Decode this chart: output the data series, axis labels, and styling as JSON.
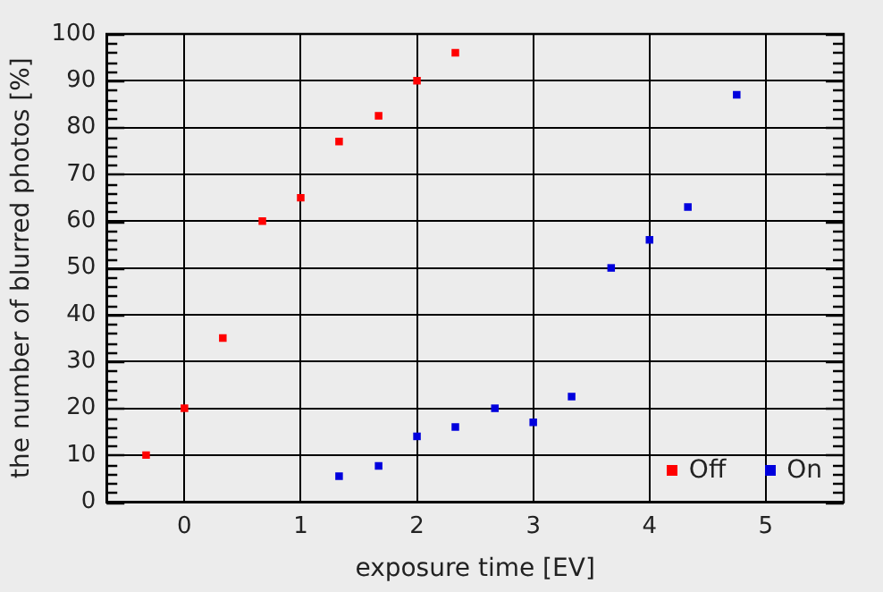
{
  "chart_data": {
    "type": "scatter",
    "xlabel": "exposure time [EV]",
    "ylabel": "the number of blurred photos [%]",
    "xlim": [
      -0.67,
      5.67
    ],
    "xticks": [
      0,
      1,
      2,
      3,
      4,
      5
    ],
    "ylim": [
      0,
      100
    ],
    "yticks": [
      0,
      {
        "value": 2,
        "label": null
      },
      {
        "value": 4,
        "label": null
      },
      {
        "value": 6,
        "label": null
      },
      {
        "value": 8,
        "label": null
      },
      10,
      {
        "value": 12,
        "label": null
      },
      {
        "value": 14,
        "label": null
      },
      {
        "value": 16,
        "label": null
      },
      {
        "value": 18,
        "label": null
      },
      20,
      {
        "value": 22,
        "label": null
      },
      {
        "value": 24,
        "label": null
      },
      {
        "value": 26,
        "label": null
      },
      {
        "value": 28,
        "label": null
      },
      30,
      {
        "value": 32,
        "label": null
      },
      {
        "value": 34,
        "label": null
      },
      {
        "value": 36,
        "label": null
      },
      {
        "value": 38,
        "label": null
      },
      40,
      {
        "value": 42,
        "label": null
      },
      {
        "value": 44,
        "label": null
      },
      {
        "value": 46,
        "label": null
      },
      {
        "value": 48,
        "label": null
      },
      50,
      {
        "value": 52,
        "label": null
      },
      {
        "value": 54,
        "label": null
      },
      {
        "value": 56,
        "label": null
      },
      {
        "value": 58,
        "label": null
      },
      60,
      {
        "value": 62,
        "label": null
      },
      {
        "value": 64,
        "label": null
      },
      {
        "value": 66,
        "label": null
      },
      {
        "value": 68,
        "label": null
      },
      70,
      {
        "value": 72,
        "label": null
      },
      {
        "value": 74,
        "label": null
      },
      {
        "value": 76,
        "label": null
      },
      {
        "value": 78,
        "label": null
      },
      80,
      {
        "value": 82,
        "label": null
      },
      {
        "value": 84,
        "label": null
      },
      {
        "value": 86,
        "label": null
      },
      {
        "value": 88,
        "label": null
      },
      90,
      {
        "value": 92,
        "label": null
      },
      {
        "value": 94,
        "label": null
      },
      {
        "value": 96,
        "label": null
      },
      {
        "value": 98,
        "label": null
      },
      100
    ],
    "grid": true,
    "legend": "bottom right",
    "marker": "square",
    "series": [
      {
        "name": "Off",
        "color": "#ff0000",
        "x": [
          -0.33,
          0,
          0.33,
          0.67,
          1,
          1.33,
          1.67,
          2,
          2.33
        ],
        "values": [
          10,
          20,
          35,
          60,
          65,
          77,
          82.5,
          90,
          96
        ]
      },
      {
        "name": "On",
        "color": "#0000dd",
        "x": [
          1.33,
          1.67,
          2,
          2.33,
          2.67,
          3,
          3.33,
          3.67,
          4,
          4.33,
          4.75
        ],
        "values": [
          5.5,
          7.7,
          14,
          16,
          20,
          17,
          22.5,
          50,
          56,
          63,
          87
        ]
      }
    ]
  }
}
